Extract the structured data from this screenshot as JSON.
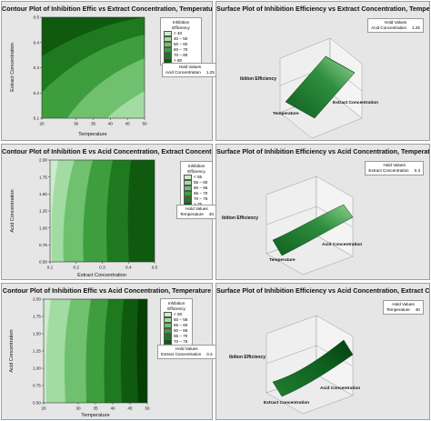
{
  "colors": {
    "levels": [
      "#cdeccd",
      "#a3dca3",
      "#6fc06f",
      "#3e9e3e",
      "#1f7a1f",
      "#0f5a0f",
      "#063f06"
    ],
    "surface_dark": "#0f5f1f",
    "surface_light": "#8bd08b"
  },
  "panels": [
    {
      "title": "Contour Plot of Inhibition Effic vs Extract Concentration, Temperature",
      "kind": "contour",
      "chart_data": {
        "type": "contour",
        "xlabel": "Temperature",
        "ylabel": "Extract Concentration",
        "xlim": [
          20,
          50
        ],
        "ylim": [
          0.1,
          0.5
        ],
        "xticks": [
          "20",
          "30",
          "35",
          "40",
          "45",
          "50"
        ],
        "yticks": [
          "0.1",
          "0.2",
          "0.3",
          "0.4",
          "0.5"
        ],
        "legend_title": [
          "Inhibition",
          "Efficiency"
        ],
        "legend": [
          "<  40",
          "40 – 50",
          "50 – 60",
          "60 – 70",
          "70 – 80",
          ">  80"
        ],
        "hold": {
          "title": "Hold Values",
          "name": "Acid Concentration",
          "value": "1.25"
        }
      }
    },
    {
      "title": "Surface Plot of Inhibition Efficiency vs Extract Concentration, Temper",
      "kind": "surface",
      "chart_data": {
        "type": "surface",
        "zlabel": "ibition Efficiency",
        "xlabel": "Temperature",
        "ylabel": "Extract Concentration",
        "hold": {
          "title": "Hold Values",
          "name": "Acid Concentration",
          "value": "1.25"
        }
      }
    },
    {
      "title": "Contour Plot of Inhibition E vs Acid Concentration, Extract Concentrat",
      "kind": "contour",
      "chart_data": {
        "type": "contour",
        "xlabel": "Extract Concentration",
        "ylabel": "Acid Concentration",
        "xlim": [
          0.1,
          0.5
        ],
        "ylim": [
          0.5,
          2.0
        ],
        "xticks": [
          "0.1",
          "0.2",
          "0.3",
          "0.4",
          "0.5"
        ],
        "yticks": [
          "0.50",
          "0.75",
          "1.00",
          "1.25",
          "1.50",
          "1.75",
          "2.00"
        ],
        "legend_title": [
          "Inhibition",
          "Efficiency"
        ],
        "legend": [
          "<  55",
          "55 – 60",
          "60 – 65",
          "65 – 70",
          "70 – 75",
          ">  75"
        ],
        "hold": {
          "title": "Hold Values",
          "name": "Temperature",
          "value": "40"
        }
      }
    },
    {
      "title": "Surface Plot of Inhibition Efficiency vs Acid Concentration, Temperatu",
      "kind": "surface",
      "chart_data": {
        "type": "surface",
        "zlabel": "ibition Efficiency",
        "xlabel": "Temperature",
        "ylabel": "Acid Concentration",
        "hold": {
          "title": "Hold Values",
          "name": "Extract Concentration",
          "value": "0.3"
        }
      }
    },
    {
      "title": "Contour Plot of Inhibition Effic vs Acid Concentration, Temperature",
      "kind": "contour",
      "chart_data": {
        "type": "contour",
        "xlabel": "Temperature",
        "ylabel": "Acid Concentration",
        "xlim": [
          20,
          50
        ],
        "ylim": [
          0.5,
          2.0
        ],
        "xticks": [
          "20",
          "30",
          "35",
          "40",
          "45",
          "50"
        ],
        "yticks": [
          "0.50",
          "0.75",
          "1.00",
          "1.25",
          "1.50",
          "1.75",
          "2.00"
        ],
        "legend_title": [
          "Inhibition",
          "Efficiency"
        ],
        "legend": [
          "<  50",
          "50 – 55",
          "55 – 60",
          "60 – 65",
          "65 – 70",
          "70 – 75",
          ">  75"
        ],
        "hold": {
          "title": "Hold Values",
          "name": "Extract Concentration",
          "value": "0.3"
        }
      }
    },
    {
      "title": "Surface Plot of Inhibition Efficiency vs Acid Concentration, Extract C",
      "kind": "surface",
      "chart_data": {
        "type": "surface",
        "zlabel": "ibition Efficiency",
        "xlabel": "Extract Concentration",
        "ylabel": "Acid Concentration",
        "hold": {
          "title": "Hold Values",
          "name": "Temperature",
          "value": "40"
        }
      }
    }
  ]
}
